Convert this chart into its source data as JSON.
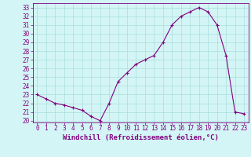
{
  "x": [
    0,
    1,
    2,
    3,
    4,
    5,
    6,
    7,
    8,
    9,
    10,
    11,
    12,
    13,
    14,
    15,
    16,
    17,
    18,
    19,
    20,
    21,
    22,
    23
  ],
  "y": [
    23.0,
    22.5,
    22.0,
    21.8,
    21.5,
    21.2,
    20.5,
    20.0,
    22.0,
    24.5,
    25.5,
    26.5,
    27.0,
    27.5,
    29.0,
    31.0,
    32.0,
    32.5,
    33.0,
    32.5,
    31.0,
    27.5,
    21.0,
    20.8
  ],
  "line_color": "#800080",
  "marker": "+",
  "marker_size": 3,
  "bg_color": "#d4f5f5",
  "grid_color": "#aadddd",
  "xlabel": "Windchill (Refroidissement éolien,°C)",
  "xlim": [
    -0.5,
    23.5
  ],
  "ylim": [
    19.8,
    33.5
  ],
  "yticks": [
    20,
    21,
    22,
    23,
    24,
    25,
    26,
    27,
    28,
    29,
    30,
    31,
    32,
    33
  ],
  "xticks": [
    0,
    1,
    2,
    3,
    4,
    5,
    6,
    7,
    8,
    9,
    10,
    11,
    12,
    13,
    14,
    15,
    16,
    17,
    18,
    19,
    20,
    21,
    22,
    23
  ],
  "tick_color": "#800080",
  "label_fontsize": 5.5,
  "xlabel_fontsize": 6.5
}
